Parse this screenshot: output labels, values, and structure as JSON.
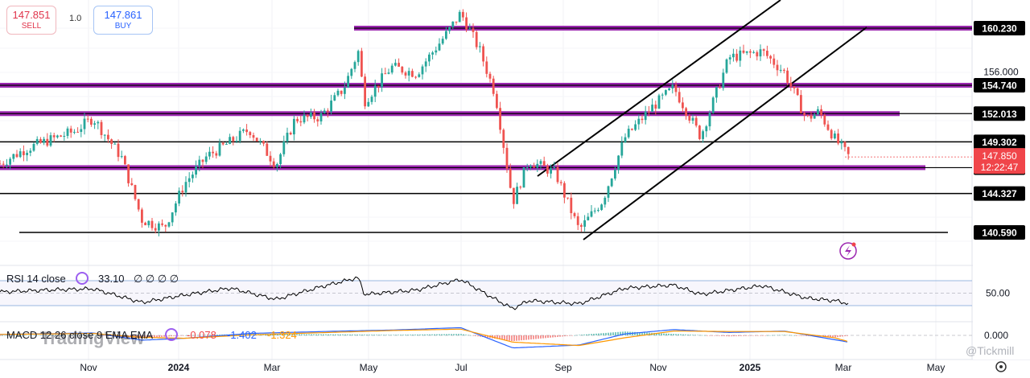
{
  "trade": {
    "sell_price": "147.851",
    "sell_label": "SELL",
    "quantity": "1.0",
    "buy_price": "147.861",
    "buy_label": "BUY"
  },
  "colors": {
    "candle_up": "#26a69a",
    "candle_down": "#ef5350",
    "zone_purple": "#9c27b0",
    "level_black": "#000000",
    "price_tag": "#f0454a",
    "macd_line": "#2962ff",
    "signal_line": "#ff9800",
    "rsi_band": "#e9e5f5"
  },
  "chart_data": [
    {
      "type": "candlestick",
      "title": "",
      "y_axis_ticks": [
        "156.000",
        "140.590"
      ],
      "x_tick_labels": [
        "Nov",
        "2024",
        "Mar",
        "May",
        "Jul",
        "Sep",
        "Nov",
        "2025",
        "Mar",
        "May"
      ],
      "last_price": "147.850",
      "countdown": "12:22:47",
      "close_series": [
        {
          "x": "2023-09-15",
          "y": 147.2
        },
        {
          "x": "2023-10-01",
          "y": 148.6
        },
        {
          "x": "2023-10-15",
          "y": 149.4
        },
        {
          "x": "2023-11-01",
          "y": 150.3
        },
        {
          "x": "2023-11-13",
          "y": 151.6
        },
        {
          "x": "2023-12-01",
          "y": 147.8
        },
        {
          "x": "2023-12-14",
          "y": 141.8
        },
        {
          "x": "2023-12-28",
          "y": 141.0
        },
        {
          "x": "2024-01-10",
          "y": 145.3
        },
        {
          "x": "2024-01-24",
          "y": 147.9
        },
        {
          "x": "2024-02-08",
          "y": 149.3
        },
        {
          "x": "2024-02-20",
          "y": 150.5
        },
        {
          "x": "2024-03-08",
          "y": 147.1
        },
        {
          "x": "2024-03-20",
          "y": 151.5
        },
        {
          "x": "2024-04-05",
          "y": 151.7
        },
        {
          "x": "2024-04-20",
          "y": 154.5
        },
        {
          "x": "2024-04-29",
          "y": 158.0
        },
        {
          "x": "2024-05-03",
          "y": 153.2
        },
        {
          "x": "2024-05-20",
          "y": 156.5
        },
        {
          "x": "2024-06-05",
          "y": 155.9
        },
        {
          "x": "2024-06-25",
          "y": 159.9
        },
        {
          "x": "2024-07-03",
          "y": 161.7
        },
        {
          "x": "2024-07-15",
          "y": 158.1
        },
        {
          "x": "2024-07-25",
          "y": 153.8
        },
        {
          "x": "2024-08-05",
          "y": 143.5
        },
        {
          "x": "2024-08-15",
          "y": 147.5
        },
        {
          "x": "2024-09-01",
          "y": 146.3
        },
        {
          "x": "2024-09-16",
          "y": 140.8
        },
        {
          "x": "2024-10-01",
          "y": 143.7
        },
        {
          "x": "2024-10-15",
          "y": 149.7
        },
        {
          "x": "2024-11-01",
          "y": 152.6
        },
        {
          "x": "2024-11-15",
          "y": 154.5
        },
        {
          "x": "2024-12-02",
          "y": 149.8
        },
        {
          "x": "2024-12-20",
          "y": 157.4
        },
        {
          "x": "2025-01-10",
          "y": 158.0
        },
        {
          "x": "2025-01-24",
          "y": 156.0
        },
        {
          "x": "2025-02-07",
          "y": 151.5
        },
        {
          "x": "2025-02-15",
          "y": 152.2
        },
        {
          "x": "2025-02-25",
          "y": 149.6
        },
        {
          "x": "2025-03-06",
          "y": 147.85
        }
      ],
      "horizontal_levels": [
        {
          "price": 160.23,
          "label": "160.230",
          "style": "zone"
        },
        {
          "price": 154.74,
          "label": "154.740",
          "style": "zone"
        },
        {
          "price": 152.013,
          "label": "152.013",
          "style": "zone"
        },
        {
          "price": 149.302,
          "label": "149.302",
          "style": "line"
        },
        {
          "price": 146.819,
          "label": "146.819",
          "style": "zone"
        },
        {
          "price": 144.327,
          "label": "144.327",
          "style": "line"
        },
        {
          "price": 140.59,
          "label": "140.590",
          "style": "line"
        }
      ]
    },
    {
      "type": "line",
      "title": "RSI 14 close",
      "value_label": "33.10",
      "extra_labels": "∅ ∅ ∅ ∅",
      "y_axis_ticks": [
        "50.00"
      ],
      "band": [
        30,
        70
      ],
      "series": [
        {
          "x": "2023-09-15",
          "y": 52
        },
        {
          "x": "2023-10-15",
          "y": 55
        },
        {
          "x": "2023-11-13",
          "y": 57
        },
        {
          "x": "2023-12-14",
          "y": 35
        },
        {
          "x": "2024-01-10",
          "y": 47
        },
        {
          "x": "2024-02-08",
          "y": 58
        },
        {
          "x": "2024-03-08",
          "y": 40
        },
        {
          "x": "2024-04-05",
          "y": 60
        },
        {
          "x": "2024-04-29",
          "y": 75
        },
        {
          "x": "2024-05-03",
          "y": 48
        },
        {
          "x": "2024-06-05",
          "y": 55
        },
        {
          "x": "2024-07-03",
          "y": 72
        },
        {
          "x": "2024-07-25",
          "y": 40
        },
        {
          "x": "2024-08-05",
          "y": 25
        },
        {
          "x": "2024-08-15",
          "y": 38
        },
        {
          "x": "2024-09-16",
          "y": 33
        },
        {
          "x": "2024-10-15",
          "y": 58
        },
        {
          "x": "2024-11-15",
          "y": 63
        },
        {
          "x": "2024-12-02",
          "y": 48
        },
        {
          "x": "2025-01-10",
          "y": 62
        },
        {
          "x": "2025-02-07",
          "y": 42
        },
        {
          "x": "2025-02-25",
          "y": 38
        },
        {
          "x": "2025-03-06",
          "y": 33.1
        }
      ]
    },
    {
      "type": "line",
      "title": "MACD 12 26 close 9 EMA EMA",
      "value_labels": [
        "-0.078",
        "-1.402",
        "-1.324"
      ],
      "y_axis_ticks": [
        "0.000"
      ],
      "macd": [
        {
          "x": "2023-09-15",
          "y": 0.2
        },
        {
          "x": "2023-11-13",
          "y": 0.5
        },
        {
          "x": "2023-12-14",
          "y": -1.0
        },
        {
          "x": "2024-01-10",
          "y": -0.6
        },
        {
          "x": "2024-02-20",
          "y": 0.4
        },
        {
          "x": "2024-04-20",
          "y": 0.9
        },
        {
          "x": "2024-05-20",
          "y": 1.1
        },
        {
          "x": "2024-07-03",
          "y": 1.6
        },
        {
          "x": "2024-08-05",
          "y": -2.6
        },
        {
          "x": "2024-09-16",
          "y": -2.0
        },
        {
          "x": "2024-10-15",
          "y": 0.3
        },
        {
          "x": "2024-11-15",
          "y": 1.2
        },
        {
          "x": "2024-12-20",
          "y": 0.6
        },
        {
          "x": "2025-01-24",
          "y": 0.9
        },
        {
          "x": "2025-02-25",
          "y": -0.9
        },
        {
          "x": "2025-03-06",
          "y": -1.402
        }
      ],
      "signal": [
        {
          "x": "2023-09-15",
          "y": 0.2
        },
        {
          "x": "2023-11-13",
          "y": 0.4
        },
        {
          "x": "2023-12-14",
          "y": -0.4
        },
        {
          "x": "2024-01-10",
          "y": -0.6
        },
        {
          "x": "2024-02-20",
          "y": 0.1
        },
        {
          "x": "2024-04-20",
          "y": 0.7
        },
        {
          "x": "2024-05-20",
          "y": 1.0
        },
        {
          "x": "2024-07-03",
          "y": 1.3
        },
        {
          "x": "2024-08-05",
          "y": -1.4
        },
        {
          "x": "2024-09-16",
          "y": -2.1
        },
        {
          "x": "2024-10-15",
          "y": -0.5
        },
        {
          "x": "2024-11-15",
          "y": 0.9
        },
        {
          "x": "2024-12-20",
          "y": 0.8
        },
        {
          "x": "2025-01-24",
          "y": 0.8
        },
        {
          "x": "2025-02-25",
          "y": -0.5
        },
        {
          "x": "2025-03-06",
          "y": -1.324
        }
      ]
    }
  ],
  "watermarks": {
    "left": "TradingView",
    "right": "@Tickmill"
  }
}
